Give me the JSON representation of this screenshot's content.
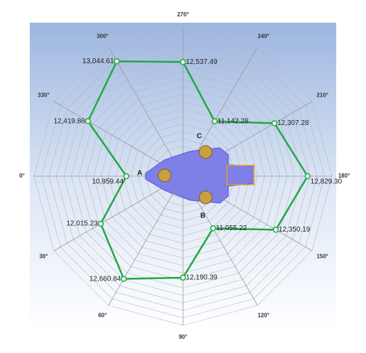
{
  "chart_data": {
    "type": "polar",
    "angles": [
      0,
      30,
      60,
      90,
      120,
      150,
      180,
      210,
      240,
      270,
      300,
      330
    ],
    "angle_ticks": [
      {
        "value": 0,
        "label": "0°"
      },
      {
        "value": 30,
        "label": "30°"
      },
      {
        "value": 60,
        "label": "60°"
      },
      {
        "value": 90,
        "label": "90°"
      },
      {
        "value": 120,
        "label": "120°"
      },
      {
        "value": 150,
        "label": "150°"
      },
      {
        "value": 180,
        "label": "180°"
      },
      {
        "value": 210,
        "label": "210°"
      },
      {
        "value": 240,
        "label": "240°"
      },
      {
        "value": 270,
        "label": "270°"
      },
      {
        "value": 300,
        "label": "300°"
      },
      {
        "value": 330,
        "label": "330°"
      }
    ],
    "rlim": [
      9400,
      13500
    ],
    "color": "#22a845",
    "values": [
      10959.44,
      12015.23,
      12660.84,
      12190.39,
      11055.22,
      12350.19,
      12829.3,
      12307.28,
      11142.28,
      12537.49,
      13044.61,
      12419.86
    ],
    "value_labels": [
      "10,959.44",
      "12,015.23",
      "12,660.84",
      "12,190.39",
      "11,055.22",
      "12,350.19",
      "12,829.30",
      "12,307.28",
      "11,142.28",
      "12,537.49",
      "13,044.61",
      "12,419.86"
    ],
    "markers": [
      "A",
      "B",
      "C"
    ]
  }
}
